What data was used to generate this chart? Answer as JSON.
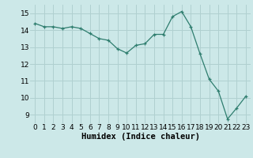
{
  "x": [
    0,
    1,
    2,
    3,
    4,
    5,
    6,
    7,
    8,
    9,
    10,
    11,
    12,
    13,
    14,
    15,
    16,
    17,
    18,
    19,
    20,
    21,
    22,
    23
  ],
  "y": [
    14.4,
    14.2,
    14.2,
    14.1,
    14.2,
    14.1,
    13.8,
    13.5,
    13.4,
    12.9,
    12.65,
    13.1,
    13.2,
    13.75,
    13.75,
    14.8,
    15.1,
    14.2,
    12.6,
    11.1,
    10.4,
    8.75,
    9.4,
    10.1
  ],
  "xlabel": "Humidex (Indice chaleur)",
  "xlim": [
    -0.5,
    23.5
  ],
  "ylim": [
    8.5,
    15.5
  ],
  "yticks": [
    9,
    10,
    11,
    12,
    13,
    14,
    15
  ],
  "xticks": [
    0,
    1,
    2,
    3,
    4,
    5,
    6,
    7,
    8,
    9,
    10,
    11,
    12,
    13,
    14,
    15,
    16,
    17,
    18,
    19,
    20,
    21,
    22,
    23
  ],
  "line_color": "#2e7d6e",
  "marker": "+",
  "bg_color": "#cce8e8",
  "grid_color": "#b0d0d0",
  "tick_fontsize": 6.5,
  "xlabel_fontsize": 7.5
}
